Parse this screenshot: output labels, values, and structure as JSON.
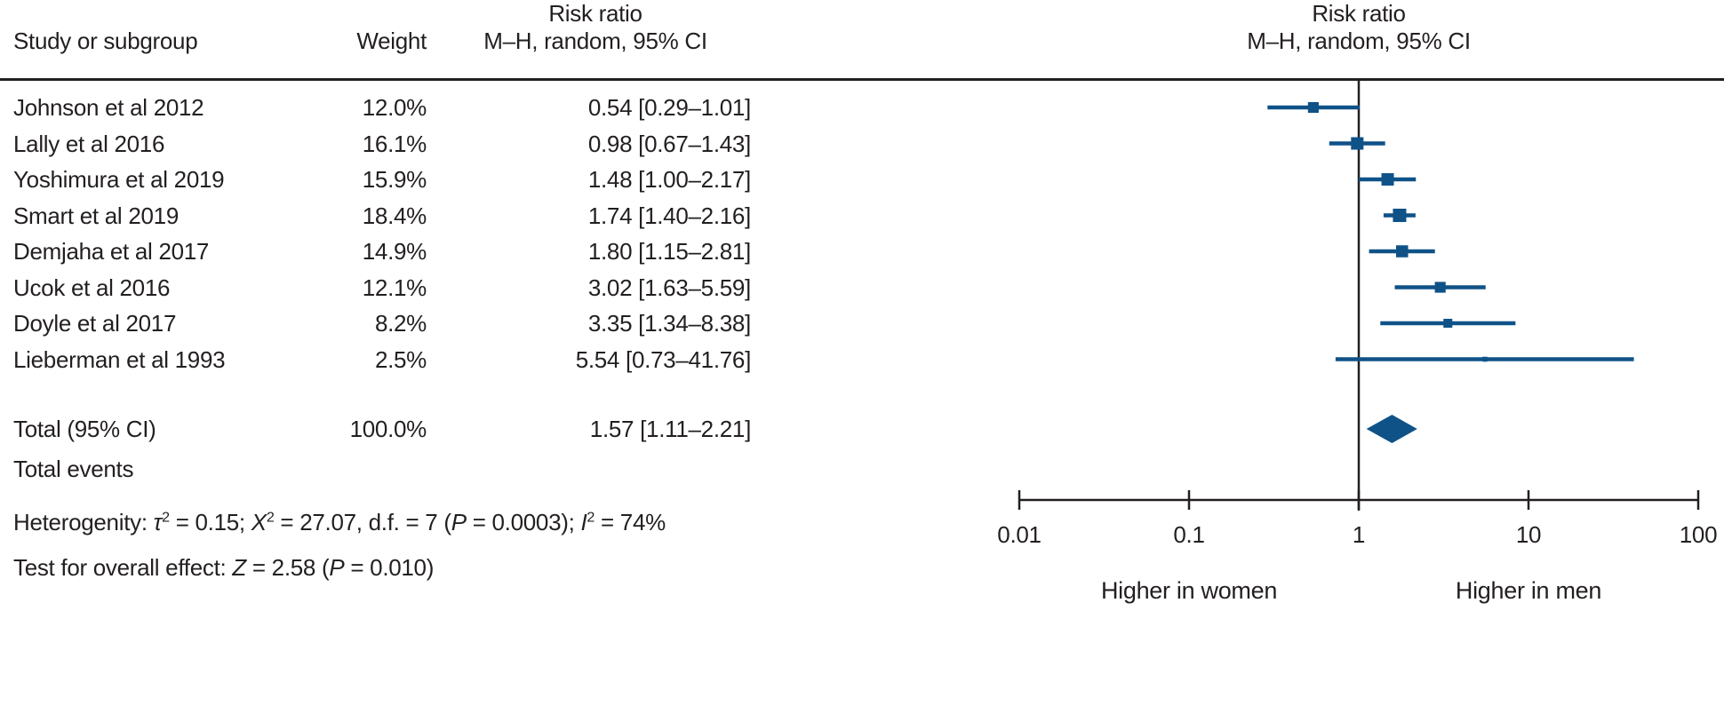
{
  "table": {
    "col1_header": "Study or subgroup",
    "col2_header": "Weight",
    "effect_header_line1": "Risk ratio",
    "effect_header_line2": "M–H, random, 95% CI",
    "rows": [
      {
        "study": "Johnson et al 2012",
        "weight": "12.0%",
        "estimate": "0.54 [0.29–1.01]"
      },
      {
        "study": "Lally et al 2016",
        "weight": "16.1%",
        "estimate": "0.98 [0.67–1.43]"
      },
      {
        "study": "Yoshimura et al 2019",
        "weight": "15.9%",
        "estimate": "1.48 [1.00–2.17]"
      },
      {
        "study": "Smart et al 2019",
        "weight": "18.4%",
        "estimate": "1.74 [1.40–2.16]"
      },
      {
        "study": "Demjaha et al 2017",
        "weight": "14.9%",
        "estimate": "1.80 [1.15–2.81]"
      },
      {
        "study": "Ucok et al 2016",
        "weight": "12.1%",
        "estimate": "3.02 [1.63–5.59]"
      },
      {
        "study": "Doyle et al 2017",
        "weight": "8.2%",
        "estimate": "3.35 [1.34–8.38]"
      },
      {
        "study": "Lieberman et al 1993",
        "weight": "2.5%",
        "estimate": "5.54 [0.73–41.76]"
      }
    ],
    "total_label": "Total (95% CI)",
    "total_weight": "100.0%",
    "total_estimate": "1.57 [1.11–2.21]",
    "total_events_label": "Total events"
  },
  "stats": {
    "heterogeneity_segments": [
      {
        "t": "Heterogenity: ",
        "i": false
      },
      {
        "t": "τ",
        "i": true
      },
      {
        "t": "2",
        "i": false,
        "sup": true
      },
      {
        "t": " = 0.15; ",
        "i": false
      },
      {
        "t": "X",
        "i": true
      },
      {
        "t": "2",
        "i": false,
        "sup": true
      },
      {
        "t": " = 27.07, d.f. = 7 (",
        "i": false
      },
      {
        "t": "P",
        "i": true
      },
      {
        "t": " = 0.0003); ",
        "i": false
      },
      {
        "t": "I",
        "i": true
      },
      {
        "t": "2",
        "i": false,
        "sup": true
      },
      {
        "t": " = 74%",
        "i": false
      }
    ],
    "overall_effect_segments": [
      {
        "t": "Test for overall effect: ",
        "i": false
      },
      {
        "t": "Z",
        "i": true
      },
      {
        "t": " = 2.58 (",
        "i": false
      },
      {
        "t": "P",
        "i": true
      },
      {
        "t": " = 0.010)",
        "i": false
      }
    ]
  },
  "plot": {
    "header_line1": "Risk ratio",
    "header_line2": "M–H, random, 95% CI",
    "left_label": "Higher in women",
    "right_label": "Higher in men"
  },
  "colors": {
    "marker_blue": "#0f5288",
    "axis_black": "#231f20",
    "text": "#231f20"
  },
  "chart_data": {
    "type": "scatter",
    "subtype": "forest-plot",
    "effect_measure": "Risk ratio, M–H, random, 95% CI",
    "x_scale": "log10",
    "x_range": [
      0.01,
      100
    ],
    "x_ticks": [
      0.01,
      0.1,
      1,
      10,
      100
    ],
    "x_tick_labels": [
      "0.01",
      "0.1",
      "1",
      "10",
      "100"
    ],
    "null_line": 1,
    "direction_labels": {
      "left": "Higher in women",
      "right": "Higher in men"
    },
    "studies": [
      {
        "label": "Johnson et al 2012",
        "weight_pct": 12.0,
        "rr": 0.54,
        "ci_low": 0.29,
        "ci_high": 1.01
      },
      {
        "label": "Lally et al 2016",
        "weight_pct": 16.1,
        "rr": 0.98,
        "ci_low": 0.67,
        "ci_high": 1.43
      },
      {
        "label": "Yoshimura et al 2019",
        "weight_pct": 15.9,
        "rr": 1.48,
        "ci_low": 1.0,
        "ci_high": 2.17
      },
      {
        "label": "Smart et al 2019",
        "weight_pct": 18.4,
        "rr": 1.74,
        "ci_low": 1.4,
        "ci_high": 2.16
      },
      {
        "label": "Demjaha et al 2017",
        "weight_pct": 14.9,
        "rr": 1.8,
        "ci_low": 1.15,
        "ci_high": 2.81
      },
      {
        "label": "Ucok et al 2016",
        "weight_pct": 12.1,
        "rr": 3.02,
        "ci_low": 1.63,
        "ci_high": 5.59
      },
      {
        "label": "Doyle et al 2017",
        "weight_pct": 8.2,
        "rr": 3.35,
        "ci_low": 1.34,
        "ci_high": 8.38
      },
      {
        "label": "Lieberman et al 1993",
        "weight_pct": 2.5,
        "rr": 5.54,
        "ci_low": 0.73,
        "ci_high": 41.76
      }
    ],
    "total": {
      "label": "Total (95% CI)",
      "weight_pct": 100.0,
      "rr": 1.57,
      "ci_low": 1.11,
      "ci_high": 2.21
    },
    "heterogeneity": {
      "tau2": 0.15,
      "chi2": 27.07,
      "df": 7,
      "p": 0.0003,
      "i2_pct": 74
    },
    "overall_effect": {
      "z": 2.58,
      "p": 0.01
    }
  }
}
